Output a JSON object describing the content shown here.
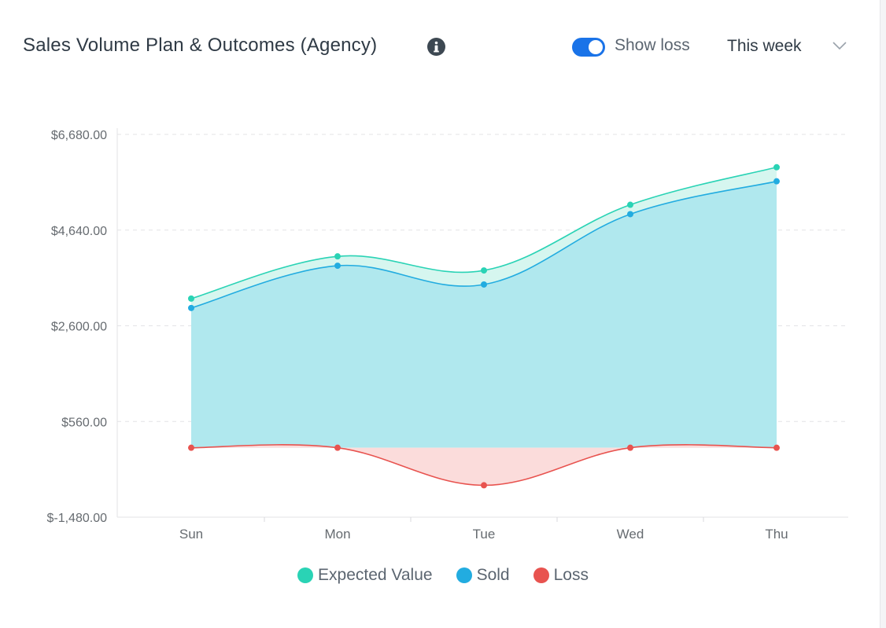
{
  "header": {
    "title": "Sales Volume Plan & Outcomes (Agency)",
    "toggle_label": "Show loss",
    "toggle_on": true,
    "period_selected": "This week"
  },
  "icons": {
    "info": "info-icon",
    "dropdown": "chevron-down-icon"
  },
  "colors": {
    "expected": "#2ad3b5",
    "sold": "#22ace0",
    "loss": "#e8534f",
    "sold_fill": "#b0e8ee",
    "expected_fill": "#d6f6ef",
    "loss_fill": "#fbdcdb",
    "toggle": "#1a73e8"
  },
  "chart_data": {
    "type": "area",
    "title": "Sales Volume Plan & Outcomes (Agency)",
    "categories": [
      "Sun",
      "Mon",
      "Tue",
      "Wed",
      "Thu"
    ],
    "series": [
      {
        "name": "Expected Value",
        "values": [
          3180,
          4080,
          3780,
          5180,
          5980
        ]
      },
      {
        "name": "Sold",
        "values": [
          2980,
          3880,
          3480,
          4980,
          5680
        ]
      },
      {
        "name": "Loss",
        "values": [
          0,
          0,
          -800,
          0,
          0
        ]
      }
    ],
    "y_ticks": [
      "$6,680.00",
      "$4,640.00",
      "$2,600.00",
      "$560.00",
      "$-1,480.00"
    ],
    "y_tick_values": [
      6680,
      4640,
      2600,
      560,
      -1480
    ],
    "ylim": [
      -1480,
      6680
    ],
    "grid": true,
    "legend_position": "bottom"
  }
}
